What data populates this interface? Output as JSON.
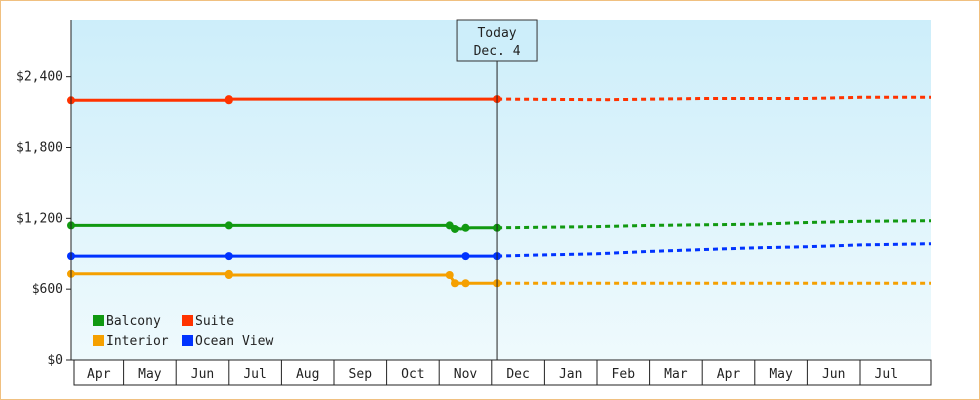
{
  "chart_data": {
    "type": "line",
    "title": "",
    "xlabel": "",
    "ylabel": "",
    "ylim": [
      0,
      2880
    ],
    "y_ticks": [
      {
        "value": 0,
        "label": "$0"
      },
      {
        "value": 600,
        "label": "$600"
      },
      {
        "value": 1200,
        "label": "$1,200"
      },
      {
        "value": 1800,
        "label": "$1,800"
      },
      {
        "value": 2400,
        "label": "$2,400"
      }
    ],
    "x_unit": "months from Apr 1",
    "xlim": [
      0,
      16.35
    ],
    "x_ticks": [
      "Apr",
      "May",
      "Jun",
      "Jul",
      "Aug",
      "Sep",
      "Oct",
      "Nov",
      "Dec",
      "Jan",
      "Feb",
      "Mar",
      "Apr",
      "May",
      "Jun",
      "Jul"
    ],
    "today": {
      "label": "Today",
      "date": "Dec. 4",
      "x": 8.1
    },
    "legend": {
      "position": "bottom-left"
    },
    "grid": false,
    "background_gradient": [
      "#cdeefa",
      "#effafd"
    ],
    "series": [
      {
        "name": "Suite",
        "color": "#ff3300",
        "actual": [
          [
            0,
            2200
          ],
          [
            3.0,
            2200
          ],
          [
            3.0,
            2210
          ],
          [
            8.1,
            2210
          ]
        ],
        "projected": [
          [
            8.1,
            2210
          ],
          [
            10.2,
            2205
          ],
          [
            12.0,
            2215
          ],
          [
            14.0,
            2215
          ],
          [
            15.0,
            2225
          ],
          [
            16.35,
            2225
          ]
        ],
        "markers": [
          [
            0,
            2200
          ],
          [
            3.0,
            2200
          ],
          [
            3.0,
            2210
          ],
          [
            8.1,
            2210
          ]
        ]
      },
      {
        "name": "Balcony",
        "color": "#119911",
        "actual": [
          [
            0,
            1140
          ],
          [
            3.0,
            1140
          ],
          [
            7.2,
            1140
          ],
          [
            7.4,
            1110
          ],
          [
            7.6,
            1120
          ],
          [
            8.1,
            1120
          ]
        ],
        "projected": [
          [
            8.1,
            1120
          ],
          [
            9.0,
            1125
          ],
          [
            10.0,
            1130
          ],
          [
            11.0,
            1140
          ],
          [
            13.0,
            1150
          ],
          [
            14.0,
            1165
          ],
          [
            15.0,
            1175
          ],
          [
            16.35,
            1180
          ]
        ],
        "markers": [
          [
            0,
            1140
          ],
          [
            3.0,
            1140
          ],
          [
            7.2,
            1140
          ],
          [
            7.3,
            1110
          ],
          [
            7.5,
            1120
          ],
          [
            8.1,
            1120
          ]
        ]
      },
      {
        "name": "Ocean View",
        "color": "#0033ff",
        "actual": [
          [
            0,
            880
          ],
          [
            3.0,
            880
          ],
          [
            7.5,
            880
          ],
          [
            8.1,
            880
          ]
        ],
        "projected": [
          [
            8.1,
            880
          ],
          [
            9.0,
            890
          ],
          [
            10.0,
            900
          ],
          [
            11.0,
            920
          ],
          [
            12.0,
            935
          ],
          [
            13.0,
            950
          ],
          [
            14.0,
            960
          ],
          [
            15.0,
            975
          ],
          [
            16.35,
            985
          ]
        ],
        "markers": [
          [
            0,
            880
          ],
          [
            3.0,
            880
          ],
          [
            7.5,
            880
          ],
          [
            8.1,
            880
          ]
        ]
      },
      {
        "name": "Interior",
        "color": "#f5a000",
        "actual": [
          [
            0,
            730
          ],
          [
            3.0,
            730
          ],
          [
            3.0,
            720
          ],
          [
            7.2,
            720
          ],
          [
            7.3,
            650
          ],
          [
            8.1,
            650
          ]
        ],
        "projected": [
          [
            8.1,
            650
          ],
          [
            16.35,
            650
          ]
        ],
        "markers": [
          [
            0,
            730
          ],
          [
            3.0,
            730
          ],
          [
            3.0,
            720
          ],
          [
            7.2,
            720
          ],
          [
            7.3,
            650
          ],
          [
            7.5,
            650
          ],
          [
            8.1,
            650
          ]
        ]
      }
    ],
    "legend_order": [
      "Balcony",
      "Suite",
      "Interior",
      "Ocean View"
    ]
  }
}
